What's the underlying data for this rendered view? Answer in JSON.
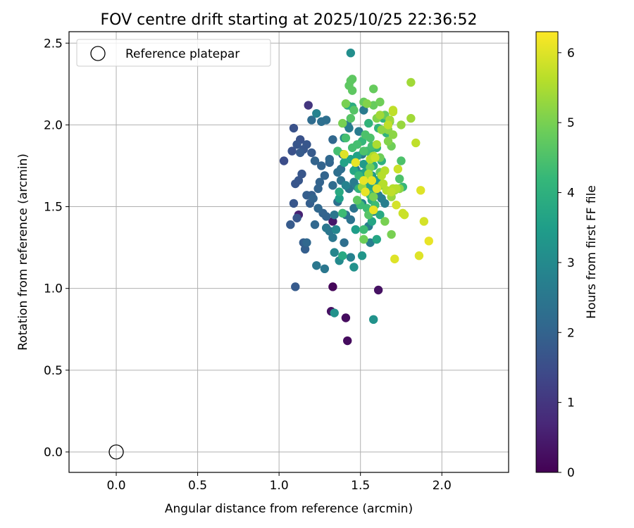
{
  "chart_data": {
    "type": "scatter",
    "title": "FOV centre drift starting at 2025/10/25 22:36:52",
    "xlabel": "Angular distance from reference (arcmin)",
    "ylabel": "Rotation from reference (arcmin)",
    "xlim": [
      -0.29,
      2.41
    ],
    "ylim": [
      -0.125,
      2.57
    ],
    "xticks": [
      0.0,
      0.5,
      1.0,
      1.5,
      2.0
    ],
    "yticks": [
      0.0,
      0.5,
      1.0,
      1.5,
      2.0,
      2.5
    ],
    "xtick_labels": [
      "0.0",
      "0.5",
      "1.0",
      "1.5",
      "2.0"
    ],
    "ytick_labels": [
      "0.0",
      "0.5",
      "1.0",
      "1.5",
      "2.0",
      "2.5"
    ],
    "grid": true,
    "legend": {
      "location": "upper-left",
      "entries": [
        "Reference platepar"
      ]
    },
    "reference_point": {
      "x": 0.0,
      "y": 0.0,
      "label": "Reference platepar"
    },
    "colorbar": {
      "label": "Hours from first FF file",
      "range": [
        0,
        6.3
      ],
      "ticks": [
        0,
        1,
        2,
        3,
        4,
        5,
        6
      ],
      "tick_labels": [
        "0",
        "1",
        "2",
        "3",
        "4",
        "5",
        "6"
      ],
      "colormap": "viridis",
      "stops": [
        "#440154",
        "#482878",
        "#3e4989",
        "#31688e",
        "#26828e",
        "#1f9e89",
        "#35b779",
        "#6ece58",
        "#b5de2b",
        "#fde725"
      ]
    },
    "series": [
      {
        "name": "FOV centre",
        "points": [
          [
            1.33,
            1.01,
            0.1
          ],
          [
            1.41,
            0.82,
            0.2
          ],
          [
            1.42,
            0.68,
            0.2
          ],
          [
            1.32,
            0.86,
            0.3
          ],
          [
            1.61,
            0.99,
            0.3
          ],
          [
            1.33,
            1.41,
            0.4
          ],
          [
            1.12,
            1.45,
            0.6
          ],
          [
            1.18,
            2.12,
            1.0
          ],
          [
            1.03,
            1.78,
            1.5
          ],
          [
            1.09,
            1.98,
            1.6
          ],
          [
            1.13,
            1.91,
            1.6
          ],
          [
            1.08,
            1.84,
            1.6
          ],
          [
            1.11,
            1.88,
            1.7
          ],
          [
            1.15,
            1.85,
            1.7
          ],
          [
            1.17,
            1.88,
            1.7
          ],
          [
            1.1,
            1.64,
            1.7
          ],
          [
            1.14,
            1.7,
            1.7
          ],
          [
            1.09,
            1.52,
            1.7
          ],
          [
            1.12,
            1.66,
            1.7
          ],
          [
            1.11,
            1.43,
            1.7
          ],
          [
            1.07,
            1.39,
            1.8
          ],
          [
            1.1,
            1.01,
            1.8
          ],
          [
            1.2,
            1.83,
            1.8
          ],
          [
            1.13,
            1.83,
            1.8
          ],
          [
            1.17,
            1.57,
            1.9
          ],
          [
            1.19,
            1.52,
            1.9
          ],
          [
            1.15,
            1.28,
            1.9
          ],
          [
            1.16,
            1.24,
            1.9
          ],
          [
            1.2,
            1.57,
            1.9
          ],
          [
            1.24,
            1.61,
            2.0
          ],
          [
            1.22,
            1.78,
            2.0
          ],
          [
            1.26,
            1.75,
            2.0
          ],
          [
            1.31,
            1.77,
            2.0
          ],
          [
            1.28,
            1.69,
            2.0
          ],
          [
            1.25,
            1.65,
            2.0
          ],
          [
            1.21,
            1.55,
            2.0
          ],
          [
            1.27,
            1.46,
            2.0
          ],
          [
            1.29,
            1.44,
            2.0
          ],
          [
            1.24,
            1.49,
            2.1
          ],
          [
            1.22,
            1.39,
            2.1
          ],
          [
            1.17,
            1.28,
            2.1
          ],
          [
            1.33,
            1.91,
            2.1
          ],
          [
            1.31,
            1.79,
            2.1
          ],
          [
            1.33,
            1.63,
            2.2
          ],
          [
            1.39,
            1.82,
            2.2
          ],
          [
            1.2,
            2.03,
            2.2
          ],
          [
            1.26,
            2.02,
            2.3
          ],
          [
            1.29,
            2.03,
            2.3
          ],
          [
            1.36,
            1.71,
            2.3
          ],
          [
            1.38,
            1.73,
            2.3
          ],
          [
            1.4,
            1.28,
            2.3
          ],
          [
            1.36,
            1.53,
            2.3
          ],
          [
            1.41,
            1.45,
            2.4
          ],
          [
            1.44,
            1.42,
            2.4
          ],
          [
            1.46,
            1.49,
            2.4
          ],
          [
            1.43,
            1.61,
            2.4
          ],
          [
            1.38,
            1.66,
            2.4
          ],
          [
            1.34,
            1.45,
            2.5
          ],
          [
            1.29,
            1.37,
            2.5
          ],
          [
            1.31,
            1.35,
            2.5
          ],
          [
            1.33,
            1.31,
            2.5
          ],
          [
            1.23,
            1.14,
            2.5
          ],
          [
            1.28,
            1.12,
            2.5
          ],
          [
            1.43,
            1.98,
            2.6
          ],
          [
            1.42,
            2.0,
            2.6
          ],
          [
            1.52,
            2.09,
            2.6
          ],
          [
            1.49,
            1.96,
            2.6
          ],
          [
            1.51,
            1.82,
            2.6
          ],
          [
            1.47,
            1.73,
            2.6
          ],
          [
            1.46,
            1.65,
            2.6
          ],
          [
            1.48,
            1.62,
            2.7
          ],
          [
            1.55,
            1.38,
            2.7
          ],
          [
            1.56,
            1.28,
            2.7
          ],
          [
            1.58,
            1.47,
            2.7
          ],
          [
            1.61,
            1.57,
            2.7
          ],
          [
            1.63,
            1.55,
            2.7
          ],
          [
            1.65,
            1.52,
            2.7
          ],
          [
            1.51,
            1.52,
            2.8
          ],
          [
            1.44,
            1.19,
            2.8
          ],
          [
            1.23,
            2.07,
            2.8
          ],
          [
            1.41,
            1.63,
            2.8
          ],
          [
            1.35,
            1.36,
            2.9
          ],
          [
            1.34,
            1.22,
            2.9
          ],
          [
            1.37,
            1.17,
            3.0
          ],
          [
            1.4,
            1.92,
            3.0
          ],
          [
            1.44,
            2.44,
            3.1
          ],
          [
            1.34,
            0.85,
            3.2
          ],
          [
            1.58,
            0.81,
            3.2
          ],
          [
            1.46,
            1.13,
            3.2
          ],
          [
            1.51,
            1.2,
            3.3
          ],
          [
            1.53,
            1.59,
            3.3
          ],
          [
            1.54,
            1.67,
            3.3
          ],
          [
            1.5,
            1.7,
            3.3
          ],
          [
            1.52,
            1.76,
            3.4
          ],
          [
            1.57,
            1.69,
            3.4
          ],
          [
            1.6,
            1.66,
            3.5
          ],
          [
            1.59,
            1.61,
            3.5
          ],
          [
            1.47,
            1.36,
            3.5
          ],
          [
            1.37,
            1.55,
            3.5
          ],
          [
            1.4,
            1.77,
            3.6
          ],
          [
            1.44,
            1.79,
            3.6
          ],
          [
            1.48,
            1.81,
            3.6
          ],
          [
            1.53,
            1.71,
            3.6
          ],
          [
            1.55,
            1.62,
            3.7
          ],
          [
            1.57,
            1.41,
            3.7
          ],
          [
            1.6,
            1.3,
            3.7
          ],
          [
            1.62,
            1.45,
            3.8
          ],
          [
            1.39,
            1.2,
            3.8
          ],
          [
            1.37,
            1.59,
            3.8
          ],
          [
            1.42,
            2.12,
            3.9
          ],
          [
            1.45,
            2.11,
            3.9
          ],
          [
            1.58,
            1.75,
            3.9
          ],
          [
            1.56,
            1.83,
            4.0
          ],
          [
            1.6,
            1.86,
            4.0
          ],
          [
            1.63,
            1.78,
            4.0
          ],
          [
            1.55,
            2.01,
            4.1
          ],
          [
            1.61,
            1.98,
            4.1
          ],
          [
            1.64,
            2.04,
            4.1
          ],
          [
            1.66,
            1.95,
            4.1
          ],
          [
            1.51,
            1.9,
            4.2
          ],
          [
            1.47,
            1.77,
            4.2
          ],
          [
            1.49,
            1.69,
            4.2
          ],
          [
            1.76,
            1.62,
            4.2
          ],
          [
            1.52,
            1.36,
            4.3
          ],
          [
            1.56,
            1.57,
            4.3
          ],
          [
            1.59,
            1.51,
            4.3
          ],
          [
            1.54,
            1.49,
            4.3
          ],
          [
            1.5,
            1.51,
            4.3
          ],
          [
            1.39,
            1.46,
            4.3
          ],
          [
            1.41,
            1.92,
            4.4
          ],
          [
            1.36,
            1.84,
            4.4
          ],
          [
            1.45,
            1.86,
            4.4
          ],
          [
            1.48,
            1.88,
            4.4
          ],
          [
            1.53,
            1.94,
            4.5
          ],
          [
            1.56,
            1.92,
            4.5
          ],
          [
            1.74,
            1.67,
            4.5
          ],
          [
            1.75,
            1.78,
            4.5
          ],
          [
            1.44,
            2.04,
            4.6
          ],
          [
            1.46,
            2.09,
            4.6
          ],
          [
            1.45,
            2.21,
            4.7
          ],
          [
            1.43,
            2.24,
            4.7
          ],
          [
            1.44,
            2.27,
            4.7
          ],
          [
            1.45,
            2.28,
            4.7
          ],
          [
            1.52,
            2.14,
            4.8
          ],
          [
            1.58,
            2.22,
            4.8
          ],
          [
            1.58,
            2.12,
            4.8
          ],
          [
            1.65,
            2.06,
            4.8
          ],
          [
            1.62,
            2.14,
            4.9
          ],
          [
            1.68,
            2.02,
            4.9
          ],
          [
            1.69,
            1.87,
            4.9
          ],
          [
            1.62,
            1.8,
            4.9
          ],
          [
            1.52,
            1.3,
            4.9
          ],
          [
            1.65,
            1.41,
            5.0
          ],
          [
            1.69,
            1.33,
            5.0
          ],
          [
            1.39,
            2.01,
            5.0
          ],
          [
            1.41,
            2.13,
            5.0
          ],
          [
            1.54,
            2.13,
            5.1
          ],
          [
            1.6,
            2.04,
            5.1
          ],
          [
            1.67,
            1.9,
            5.1
          ],
          [
            1.63,
            1.97,
            5.2
          ],
          [
            1.67,
            1.97,
            5.2
          ],
          [
            1.7,
            1.94,
            5.2
          ],
          [
            1.7,
            1.61,
            5.2
          ],
          [
            1.74,
            1.61,
            5.2
          ],
          [
            1.69,
            1.56,
            5.3
          ],
          [
            1.71,
            1.6,
            5.3
          ],
          [
            1.75,
            2.0,
            5.3
          ],
          [
            1.81,
            2.26,
            5.4
          ],
          [
            1.81,
            2.04,
            5.4
          ],
          [
            1.62,
            2.06,
            5.4
          ],
          [
            1.68,
            2.03,
            5.4
          ],
          [
            1.58,
            1.81,
            5.5
          ],
          [
            1.6,
            1.88,
            5.5
          ],
          [
            1.56,
            1.79,
            5.6
          ],
          [
            1.63,
            1.69,
            5.6
          ],
          [
            1.64,
            1.64,
            5.6
          ],
          [
            1.66,
            1.6,
            5.6
          ],
          [
            1.7,
            1.61,
            5.6
          ],
          [
            1.72,
            1.61,
            5.6
          ],
          [
            1.69,
            1.59,
            5.7
          ],
          [
            1.67,
            2.0,
            5.7
          ],
          [
            1.7,
            2.08,
            5.7
          ],
          [
            1.7,
            2.09,
            5.7
          ],
          [
            1.84,
            1.89,
            5.7
          ],
          [
            1.73,
            1.73,
            5.8
          ],
          [
            1.76,
            1.46,
            5.8
          ],
          [
            1.77,
            1.45,
            5.8
          ],
          [
            1.72,
            1.51,
            5.9
          ],
          [
            1.89,
            1.41,
            5.9
          ],
          [
            1.71,
            1.18,
            6.0
          ],
          [
            1.86,
            1.2,
            6.0
          ],
          [
            1.87,
            1.6,
            6.0
          ],
          [
            1.92,
            1.29,
            6.1
          ],
          [
            1.58,
            1.48,
            6.1
          ],
          [
            1.47,
            1.77,
            6.1
          ],
          [
            1.52,
            1.66,
            6.1
          ],
          [
            1.53,
            1.59,
            6.1
          ],
          [
            1.57,
            1.66,
            6.1
          ],
          [
            1.6,
            1.61,
            6.0
          ],
          [
            1.4,
            1.82,
            6.0
          ],
          [
            1.59,
            1.8,
            5.8
          ],
          [
            1.65,
            1.72,
            5.6
          ],
          [
            1.55,
            1.7,
            5.5
          ],
          [
            1.51,
            1.62,
            5.3
          ],
          [
            1.63,
            1.63,
            5.2
          ],
          [
            1.58,
            1.56,
            5.0
          ],
          [
            1.56,
            1.74,
            4.9
          ],
          [
            1.62,
            1.71,
            4.8
          ],
          [
            1.48,
            1.54,
            4.7
          ],
          [
            1.55,
            1.45,
            4.6
          ],
          [
            1.52,
            1.84,
            4.5
          ],
          [
            1.57,
            1.87,
            4.4
          ],
          [
            1.54,
            1.84,
            4.3
          ],
          [
            1.49,
            1.61,
            4.1
          ],
          [
            1.57,
            1.54,
            3.9
          ],
          [
            1.46,
            1.72,
            3.7
          ]
        ]
      }
    ]
  }
}
